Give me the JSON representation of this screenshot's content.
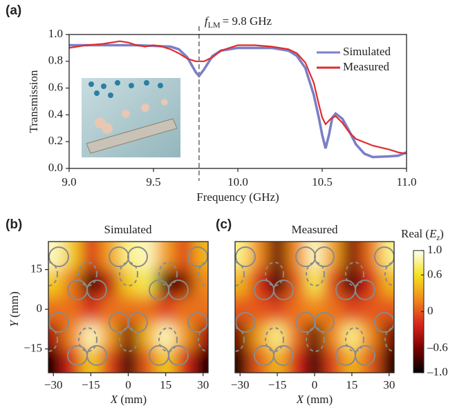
{
  "chart_data": [
    {
      "type": "line",
      "panel_label": "(a)",
      "xlabel": "Frequency (GHz)",
      "ylabel": "Transmission",
      "xlim": [
        9.0,
        11.0
      ],
      "ylim": [
        0.0,
        1.0
      ],
      "xticks": [
        {
          "value": 9,
          "label": "9.0"
        },
        {
          "value": 9.5,
          "label": "9.5"
        },
        {
          "value": 10,
          "label": "10.0"
        },
        {
          "value": 10.5,
          "label": "10.5"
        },
        {
          "value": 11,
          "label": "11.0"
        }
      ],
      "yticks": [
        {
          "value": 0,
          "label": "0.0"
        },
        {
          "value": 0.2,
          "label": "0.2"
        },
        {
          "value": 0.4,
          "label": "0.4"
        },
        {
          "value": 0.6,
          "label": "0.6"
        },
        {
          "value": 0.8,
          "label": "0.8"
        },
        {
          "value": 1,
          "label": "1.0"
        }
      ],
      "annotation": {
        "x": 9.77,
        "symbol": "f",
        "subscript": "LM",
        "text": "= 9.8 GHz"
      },
      "legend": "upper right",
      "series": [
        {
          "name": "Simulated",
          "color": "#7a7fc6",
          "x": [
            9.0,
            9.2,
            9.4,
            9.6,
            9.65,
            9.7,
            9.75,
            9.77,
            9.8,
            9.85,
            9.9,
            10.0,
            10.1,
            10.2,
            10.3,
            10.35,
            10.4,
            10.45,
            10.48,
            10.5,
            10.52,
            10.54,
            10.56,
            10.58,
            10.62,
            10.66,
            10.7,
            10.75,
            10.8,
            10.9,
            10.95,
            11.0
          ],
          "values": [
            0.92,
            0.92,
            0.92,
            0.91,
            0.89,
            0.83,
            0.72,
            0.69,
            0.74,
            0.84,
            0.88,
            0.9,
            0.9,
            0.9,
            0.88,
            0.84,
            0.75,
            0.55,
            0.38,
            0.25,
            0.15,
            0.25,
            0.38,
            0.41,
            0.37,
            0.28,
            0.18,
            0.11,
            0.085,
            0.09,
            0.095,
            0.12
          ]
        },
        {
          "name": "Measured",
          "color": "#e02b2b",
          "x": [
            9.0,
            9.1,
            9.2,
            9.3,
            9.35,
            9.4,
            9.45,
            9.5,
            9.55,
            9.6,
            9.65,
            9.7,
            9.75,
            9.8,
            9.85,
            9.9,
            10.0,
            10.1,
            10.2,
            10.3,
            10.35,
            10.4,
            10.45,
            10.48,
            10.5,
            10.52,
            10.55,
            10.58,
            10.62,
            10.66,
            10.7,
            10.8,
            10.9,
            10.95,
            11.0
          ],
          "values": [
            0.9,
            0.92,
            0.93,
            0.95,
            0.94,
            0.92,
            0.91,
            0.92,
            0.91,
            0.89,
            0.86,
            0.82,
            0.8,
            0.8,
            0.83,
            0.88,
            0.92,
            0.92,
            0.91,
            0.89,
            0.86,
            0.79,
            0.64,
            0.48,
            0.38,
            0.33,
            0.37,
            0.39,
            0.34,
            0.27,
            0.22,
            0.17,
            0.14,
            0.12,
            0.11
          ]
        }
      ]
    },
    {
      "type": "heatmap",
      "panel_label": "(b)",
      "title": "Simulated",
      "xlabel": {
        "symbol": "X",
        "text": "(mm)"
      },
      "ylabel": {
        "symbol": "Y",
        "text": "(mm)"
      },
      "xlim": [
        -32,
        32
      ],
      "ylim": [
        -24,
        25.6
      ],
      "xticks": [
        {
          "value": -30,
          "label": "−30"
        },
        {
          "value": -15,
          "label": "−15"
        },
        0,
        15,
        30
      ],
      "yticks": [
        {
          "value": -15,
          "label": "−15"
        },
        0,
        15
      ],
      "x": [
        -30,
        -22.5,
        -15,
        -7.5,
        0,
        7.5,
        15,
        22.5,
        30
      ],
      "y": [
        20,
        10,
        0,
        -10,
        -20
      ],
      "z": [
        [
          0.9,
          0.5,
          -0.2,
          0.3,
          0.8,
          0.9,
          0.3,
          -0.1,
          0.4
        ],
        [
          0.5,
          0.1,
          -0.95,
          -0.3,
          0.5,
          0.7,
          -0.8,
          -0.6,
          0.2
        ],
        [
          0.1,
          0.1,
          -0.2,
          0.1,
          0.1,
          0.1,
          -0.1,
          0.1,
          0.1
        ],
        [
          -0.4,
          0.2,
          0.9,
          0.3,
          -0.6,
          0.4,
          0.9,
          0.3,
          -0.4
        ],
        [
          -0.9,
          -0.2,
          0.5,
          -0.1,
          -0.9,
          0,
          0.5,
          -0.2,
          -0.9
        ]
      ]
    },
    {
      "type": "heatmap",
      "panel_label": "(c)",
      "title": "Measured",
      "xlabel": {
        "symbol": "X",
        "text": "(mm)"
      },
      "xlim": [
        -32,
        32
      ],
      "ylim": [
        -24,
        25.6
      ],
      "xticks": [
        {
          "value": -30,
          "label": "−30"
        },
        {
          "value": -15,
          "label": "−15"
        },
        0,
        15,
        30
      ],
      "x": [
        -30,
        -22.5,
        -15,
        -7.5,
        0,
        7.5,
        15,
        22.5,
        30
      ],
      "y": [
        20,
        10,
        0,
        -10,
        -20
      ],
      "z": [
        [
          0.8,
          0.2,
          -0.7,
          0.2,
          0.9,
          0.3,
          -0.6,
          0.1,
          0.8
        ],
        [
          0.4,
          -0.2,
          -0.9,
          0,
          0.7,
          -0.1,
          -0.9,
          -0.2,
          0.4
        ],
        [
          0,
          0,
          -0.1,
          0.1,
          0.2,
          0.1,
          -0.1,
          0,
          0
        ],
        [
          -0.6,
          0.3,
          0.8,
          0.1,
          -0.7,
          0.2,
          0.8,
          0.2,
          -0.6
        ],
        [
          -0.9,
          0,
          0.4,
          -0.2,
          -0.9,
          -0.1,
          0.4,
          0,
          -0.9
        ]
      ],
      "colorbar": {
        "label": {
          "prefix": "Real (",
          "symbol": "E",
          "subscript": "z",
          "suffix": ")"
        },
        "zlim": [
          -1,
          1
        ],
        "ticks": [
          {
            "value": 1,
            "label": "1.0"
          },
          {
            "value": 0.6,
            "label": "0.6"
          },
          0,
          {
            "value": -0.6,
            "label": "–0.6"
          },
          {
            "value": -1,
            "label": "–1.0"
          }
        ],
        "colormap": [
          "#000000",
          "#7a0000",
          "#d8261c",
          "#f08a1c",
          "#f4e21e",
          "#fffff2"
        ]
      }
    }
  ]
}
